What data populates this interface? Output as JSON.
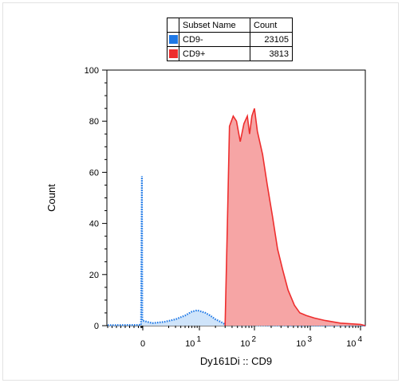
{
  "legend": {
    "header_name": "Subset Name",
    "header_count": "Count",
    "rows": [
      {
        "name": "CD9-",
        "count": "23105",
        "color": "#1e78e6"
      },
      {
        "name": "CD9+",
        "count": "3813",
        "color": "#ee2e2e"
      }
    ]
  },
  "chart_data": {
    "type": "area",
    "title": "",
    "xlabel": "Dy161Di :: CD9",
    "ylabel": "Count",
    "xscale": "biexponential",
    "ylim": [
      0,
      100
    ],
    "yticks": [
      0,
      20,
      40,
      60,
      80,
      100
    ],
    "xticks": [
      {
        "value": 0,
        "base": "0",
        "exp": ""
      },
      {
        "value": 10,
        "base": "10",
        "exp": "1"
      },
      {
        "value": 100,
        "base": "10",
        "exp": "2"
      },
      {
        "value": 1000,
        "base": "10",
        "exp": "3"
      },
      {
        "value": 10000,
        "base": "10",
        "exp": "4"
      }
    ],
    "series": [
      {
        "name": "CD9-",
        "color": "#1e78e6",
        "fill": "#cfe4fa",
        "style": "dotted",
        "points": [
          [
            -40,
            0.2
          ],
          [
            -2,
            0.3
          ],
          [
            -1,
            58.5
          ],
          [
            -0.5,
            2
          ],
          [
            0.5,
            1
          ],
          [
            1.5,
            1.5
          ],
          [
            3,
            2.5
          ],
          [
            5,
            4
          ],
          [
            7,
            5.5
          ],
          [
            9,
            6
          ],
          [
            11,
            5.5
          ],
          [
            13,
            5
          ],
          [
            16,
            4
          ],
          [
            20,
            2.5
          ],
          [
            25,
            1.5
          ],
          [
            30,
            0.5
          ],
          [
            40,
            0.3
          ],
          [
            100,
            0.2
          ],
          [
            1000,
            0.1
          ],
          [
            10000,
            0.1
          ],
          [
            14000,
            0
          ]
        ]
      },
      {
        "name": "CD9+",
        "color": "#ee2e2e",
        "fill": "#f6a5a5",
        "style": "solid",
        "points": [
          [
            30,
            0
          ],
          [
            33,
            40
          ],
          [
            36,
            78
          ],
          [
            42,
            82
          ],
          [
            48,
            80
          ],
          [
            56,
            72
          ],
          [
            65,
            79
          ],
          [
            75,
            82
          ],
          [
            82,
            75
          ],
          [
            90,
            82
          ],
          [
            100,
            85
          ],
          [
            113,
            76
          ],
          [
            140,
            67
          ],
          [
            170,
            55
          ],
          [
            210,
            43
          ],
          [
            260,
            30
          ],
          [
            320,
            22
          ],
          [
            400,
            14
          ],
          [
            520,
            8
          ],
          [
            650,
            5
          ],
          [
            850,
            4
          ],
          [
            1200,
            3
          ],
          [
            2000,
            2
          ],
          [
            4000,
            1
          ],
          [
            10000,
            0.5
          ],
          [
            14000,
            0
          ]
        ]
      }
    ]
  }
}
